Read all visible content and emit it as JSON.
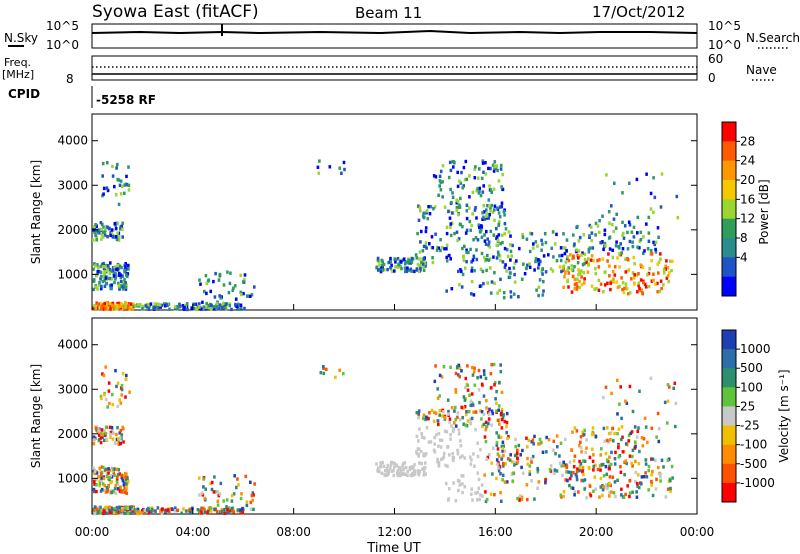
{
  "header": {
    "station": "Syowa East (fitACF)",
    "beam": "Beam 11",
    "date": "17/Oct/2012"
  },
  "strip": {
    "nsky_label": "N.Sky",
    "nsearch_label": "N.Search",
    "freq_label": "Freq.",
    "freq_unit": "[MHz]",
    "nave_label": "Nave",
    "cpid_label": "CPID",
    "cpid_value": "-5258 RF",
    "left_ticks_noise": [
      "10^5",
      "10^0"
    ],
    "right_ticks_noise": [
      "10^5",
      "10^0"
    ],
    "left_ticks_freq": [
      "8"
    ],
    "right_ticks_nave": [
      "60",
      "0"
    ]
  },
  "chart_data": [
    {
      "type": "heatmap",
      "name": "power",
      "ylabel": "Slant Range [km]",
      "xlabel": "",
      "x_ticks": [
        "00:00",
        "04:00",
        "08:00",
        "12:00",
        "16:00",
        "20:00",
        "00:00"
      ],
      "y_ticks": [
        "1000",
        "2000",
        "3000",
        "4000"
      ],
      "ylim": [
        200,
        4600
      ],
      "xlim_hours": [
        0,
        24
      ],
      "colorbar_label": "Power [dB]",
      "colorbar_ticks": [
        "28",
        "24",
        "20",
        "16",
        "12",
        "8",
        "4"
      ],
      "colorbar_colors": [
        "#ff0000",
        "#ff5a00",
        "#ff9800",
        "#f6c800",
        "#9bd62e",
        "#2e9e5a",
        "#2b8c8c",
        "#1f54c8",
        "#0000ff"
      ]
    },
    {
      "type": "heatmap",
      "name": "velocity",
      "ylabel": "Slant Range [km]",
      "xlabel": "Time UT",
      "x_ticks": [
        "00:00",
        "04:00",
        "08:00",
        "12:00",
        "16:00",
        "20:00",
        "00:00"
      ],
      "y_ticks": [
        "1000",
        "2000",
        "3000",
        "4000"
      ],
      "ylim": [
        200,
        4600
      ],
      "xlim_hours": [
        0,
        24
      ],
      "colorbar_label": "Velocity [m s⁻¹]",
      "colorbar_ticks": [
        "1000",
        "500",
        "100",
        "25",
        "-25",
        "-100",
        "-500",
        "-1000"
      ],
      "colorbar_colors": [
        "#1e3fb4",
        "#2b6ea8",
        "#2d8f6f",
        "#5fc33c",
        "#c8c8c8",
        "#f0c000",
        "#ff8c00",
        "#ff5000",
        "#ff0000"
      ]
    }
  ]
}
